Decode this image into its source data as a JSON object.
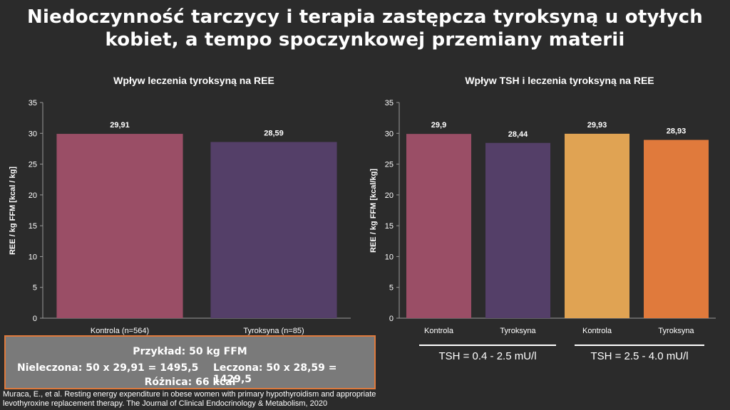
{
  "title_line1": "Niedoczynność tarczycy i terapia zastępcza tyroksyną u otyłych",
  "title_line2": "kobiet, a tempo spoczynkowej przemiany materii",
  "chart_data": [
    {
      "type": "bar",
      "title": "Wpływ leczenia tyroksyną na REE",
      "ylabel": "REE / kg FFM [kcal / kg]",
      "xlabel": "",
      "ylim": [
        0,
        35
      ],
      "yticks": [
        0,
        5,
        10,
        15,
        20,
        25,
        30,
        35
      ],
      "categories": [
        "Kontrola (n=564)",
        "Tyroksyna (n=85)"
      ],
      "values": [
        29.91,
        28.59
      ],
      "value_labels": [
        "29,91",
        "28,59"
      ],
      "colors": [
        "#9a4e66",
        "#543f68"
      ],
      "grid": false
    },
    {
      "type": "bar",
      "title": "Wpływ TSH i leczenia tyroksyną na REE",
      "ylabel": "REE / kg FFM [kcal/kg]",
      "xlabel": "",
      "ylim": [
        0,
        35
      ],
      "yticks": [
        0,
        5,
        10,
        15,
        20,
        25,
        30,
        35
      ],
      "categories": [
        "Kontrola",
        "Tyroksyna",
        "Kontrola",
        "Tyroksyna"
      ],
      "values": [
        29.9,
        28.44,
        29.93,
        28.93
      ],
      "value_labels": [
        "29,9",
        "28,44",
        "29,93",
        "28,93"
      ],
      "colors": [
        "#9a4e66",
        "#543f68",
        "#e0a353",
        "#e07a3c"
      ],
      "groups": [
        "TSH = 0.4 - 2.5 mU/l",
        "TSH = 2.5 - 4.0 mU/l"
      ],
      "grid": false
    }
  ],
  "callout": {
    "line1": "Przykład: 50 kg FFM",
    "line2a": "Nieleczona: 50 x 29,91 = 1495,5",
    "line2b": "Leczona: 50 x 28,59 = 1429,5",
    "line3": "Różnica: 66 kcal"
  },
  "citation": {
    "line1": "Muraca, E., et al. Resting energy expenditure in obese women with primary hypothyroidism and appropriate",
    "line2": "levothyroxine replacement therapy. The Journal of Clinical Endocrinology & Metabolism, 2020"
  },
  "colors": {
    "background": "#2b2b2b",
    "callout_bg": "#7a7a7a",
    "callout_border": "#e07a3c",
    "axis": "#9a9a9a"
  }
}
